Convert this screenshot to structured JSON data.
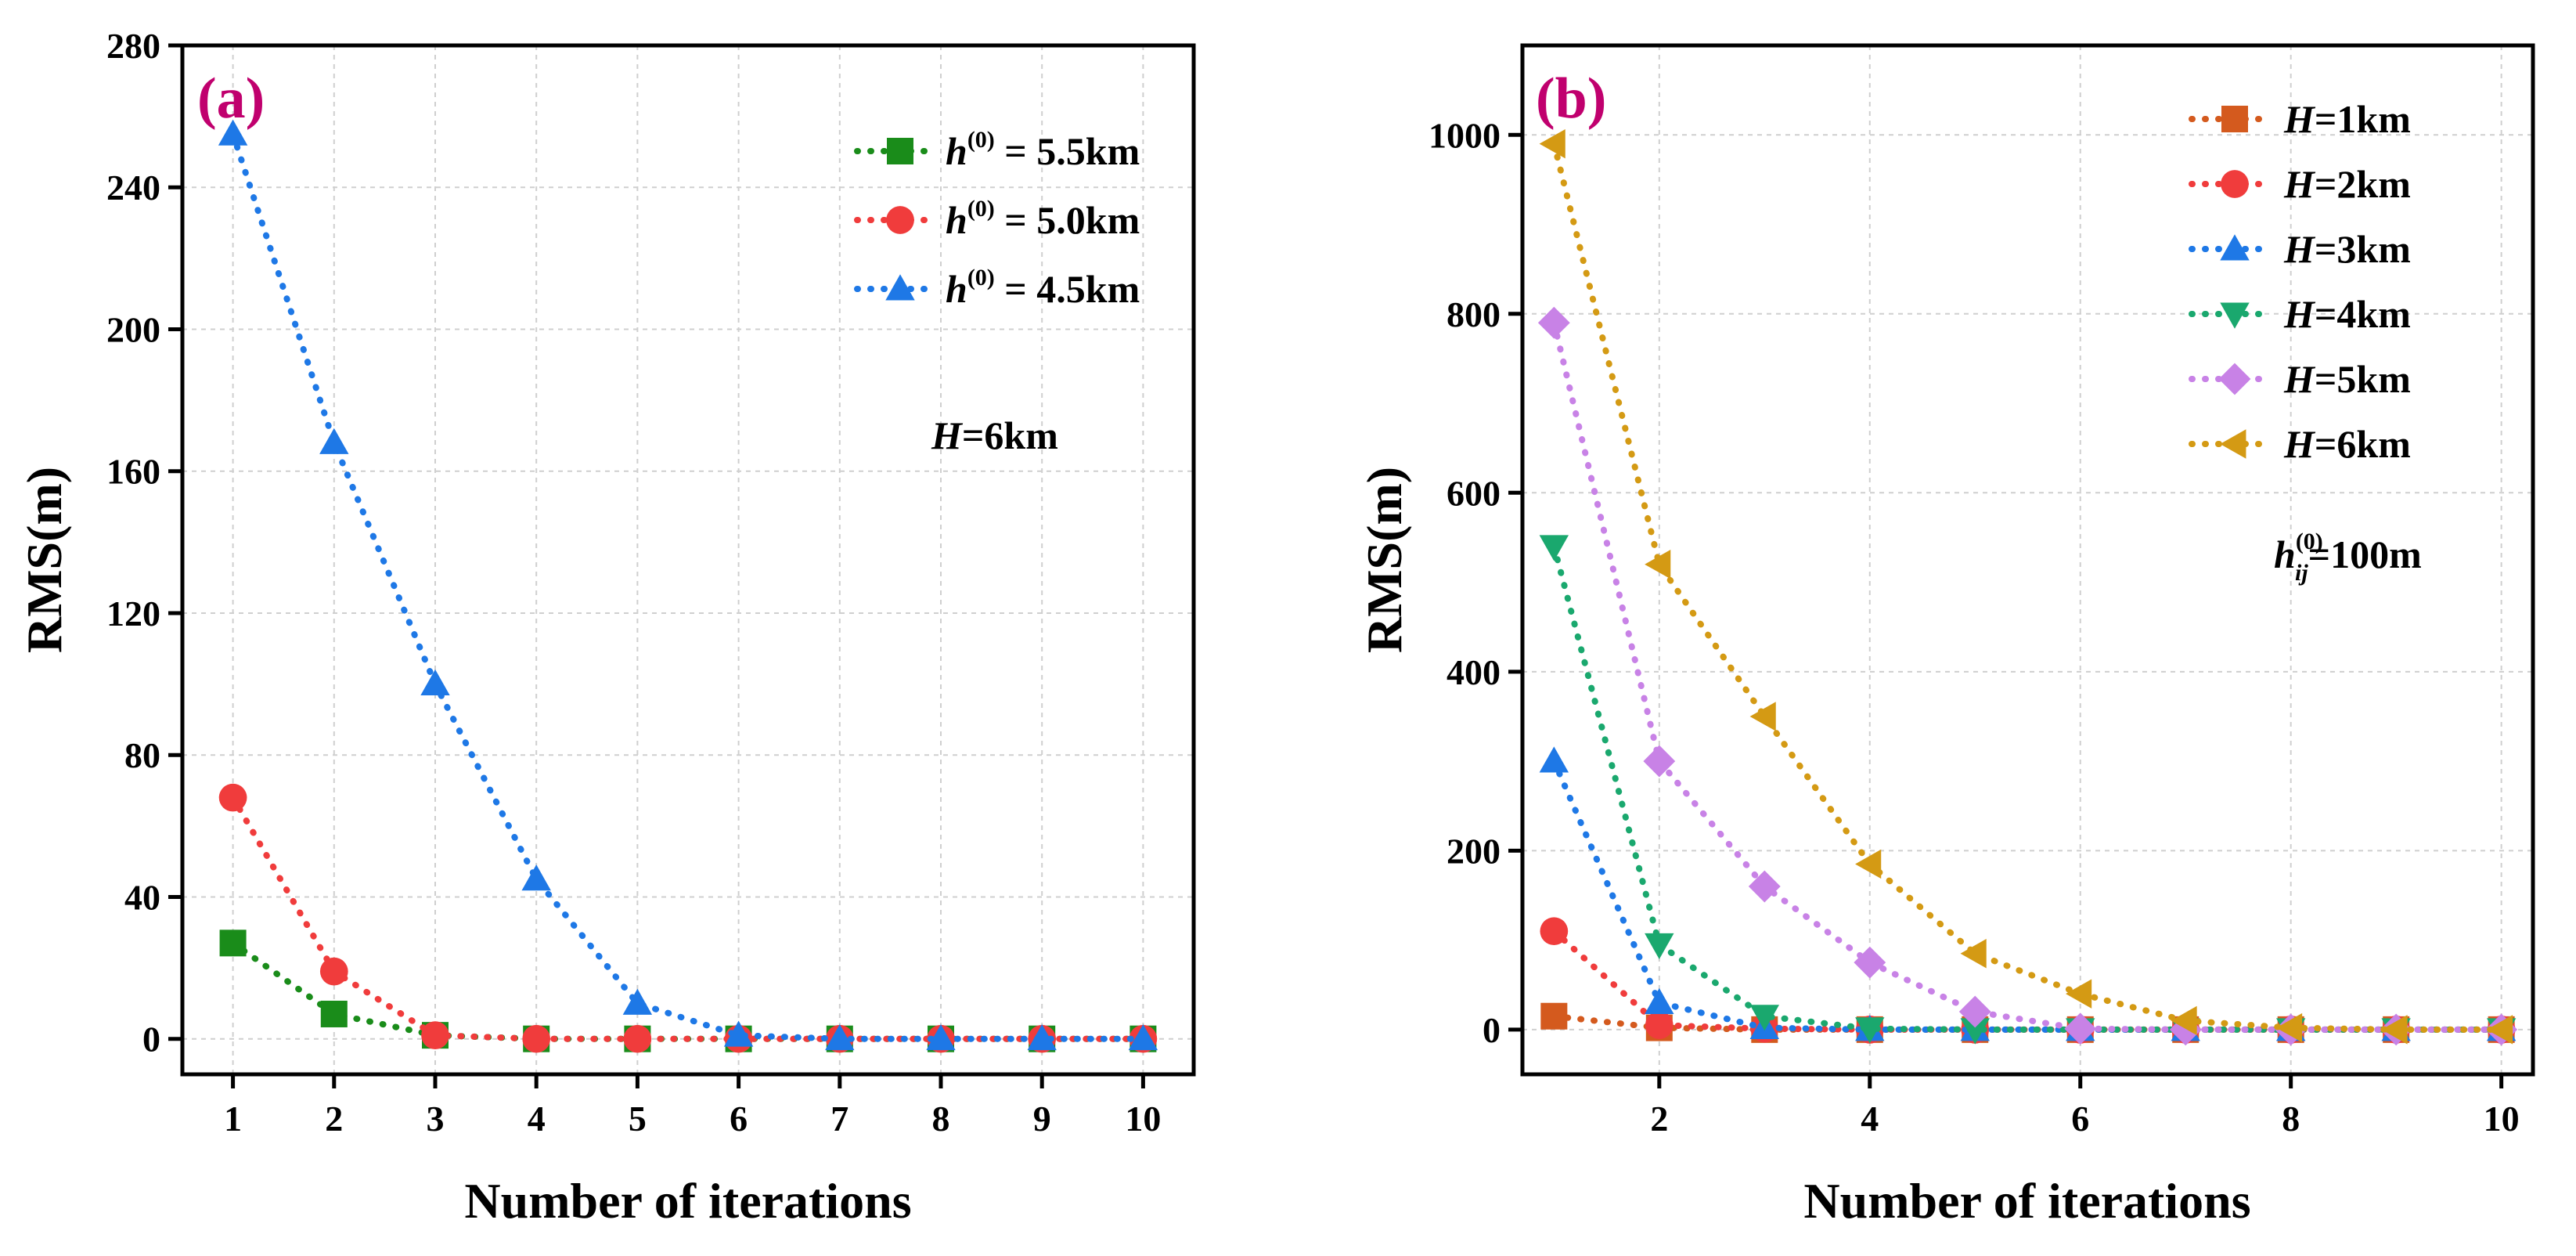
{
  "chart_data": [
    {
      "type": "scatter",
      "panel_label": "(a)",
      "xlabel": "Number of iterations",
      "ylabel": "RMS(m)",
      "xlim": [
        0.5,
        10.5
      ],
      "ylim": [
        -10,
        280
      ],
      "xticks": [
        1,
        2,
        3,
        4,
        5,
        6,
        7,
        8,
        9,
        10
      ],
      "xtick_labels": [
        "1",
        "2",
        "3",
        "4",
        "5",
        "6",
        "7",
        "8",
        "9",
        "10"
      ],
      "yticks": [
        0,
        40,
        80,
        120,
        160,
        200,
        240,
        280
      ],
      "ytick_labels": [
        "0",
        "40",
        "80",
        "120",
        "160",
        "200",
        "240",
        "280"
      ],
      "grid": true,
      "legend_position": "top-right",
      "annotation": {
        "var": "H",
        "text": "=6km"
      },
      "series": [
        {
          "name_var": "h",
          "name_sup": "(0)",
          "name_val": " = 5.5km",
          "color": "#1a8c1a",
          "marker": "square",
          "x": [
            1,
            2,
            3,
            4,
            5,
            6,
            7,
            8,
            9,
            10
          ],
          "values": [
            27,
            7,
            1,
            0,
            0,
            0,
            0,
            0,
            0,
            0
          ]
        },
        {
          "name_var": "h",
          "name_sup": "(0)",
          "name_val": " = 5.0km",
          "color": "#f03c3c",
          "marker": "circle",
          "x": [
            1,
            2,
            3,
            4,
            5,
            6,
            7,
            8,
            9,
            10
          ],
          "values": [
            68,
            19,
            1,
            0,
            0,
            0,
            0,
            0,
            0,
            0
          ]
        },
        {
          "name_var": "h",
          "name_sup": "(0)",
          "name_val": " = 4.5km",
          "color": "#1e78e6",
          "marker": "triangle-up",
          "x": [
            1,
            2,
            3,
            4,
            5,
            6,
            7,
            8,
            9,
            10
          ],
          "values": [
            255,
            168,
            100,
            45,
            10,
            1,
            0,
            0,
            0,
            0
          ]
        }
      ]
    },
    {
      "type": "scatter",
      "panel_label": "(b)",
      "xlabel": "Number of iterations",
      "ylabel": "RMS(m)",
      "xlim": [
        0.7,
        10.3
      ],
      "ylim": [
        -50,
        1100
      ],
      "xticks": [
        2,
        4,
        6,
        8,
        10
      ],
      "xtick_labels": [
        "2",
        "4",
        "6",
        "8",
        "10"
      ],
      "yticks": [
        0,
        200,
        400,
        600,
        800,
        1000
      ],
      "ytick_labels": [
        "0",
        "200",
        "400",
        "600",
        "800",
        "1000"
      ],
      "grid": true,
      "legend_position": "top-right",
      "annotation": {
        "var": "h",
        "sup": "(0)",
        "sub": "ij",
        "text": "=100m"
      },
      "series": [
        {
          "name_var": "H",
          "name_val": "=1km",
          "color": "#d45a1e",
          "marker": "square",
          "x": [
            1,
            2,
            3,
            4,
            5,
            6,
            7,
            8,
            9,
            10
          ],
          "values": [
            15,
            2,
            0,
            0,
            0,
            0,
            0,
            0,
            0,
            0
          ]
        },
        {
          "name_var": "H",
          "name_val": "=2km",
          "color": "#f03c3c",
          "marker": "circle",
          "x": [
            1,
            2,
            3,
            4,
            5,
            6,
            7,
            8,
            9,
            10
          ],
          "values": [
            110,
            5,
            1,
            0,
            0,
            0,
            0,
            0,
            0,
            0
          ]
        },
        {
          "name_var": "H",
          "name_val": "=3km",
          "color": "#1e78e6",
          "marker": "triangle-up",
          "x": [
            1,
            2,
            3,
            4,
            5,
            6,
            7,
            8,
            9,
            10
          ],
          "values": [
            300,
            30,
            2,
            0,
            0,
            0,
            0,
            0,
            0,
            0
          ]
        },
        {
          "name_var": "H",
          "name_val": "=4km",
          "color": "#1aa86e",
          "marker": "triangle-down",
          "x": [
            1,
            2,
            3,
            4,
            5,
            6,
            7,
            8,
            9,
            10
          ],
          "values": [
            540,
            95,
            15,
            1,
            0,
            0,
            0,
            0,
            0,
            0
          ]
        },
        {
          "name_var": "H",
          "name_val": "=5km",
          "color": "#c882e6",
          "marker": "diamond",
          "x": [
            1,
            2,
            3,
            4,
            5,
            6,
            7,
            8,
            9,
            10
          ],
          "values": [
            790,
            300,
            160,
            75,
            20,
            1,
            0,
            0,
            0,
            0
          ]
        },
        {
          "name_var": "H",
          "name_val": "=6km",
          "color": "#d49a14",
          "marker": "triangle-left",
          "x": [
            1,
            2,
            3,
            4,
            5,
            6,
            7,
            8,
            9,
            10
          ],
          "values": [
            990,
            520,
            350,
            185,
            85,
            40,
            10,
            2,
            0,
            0
          ]
        }
      ]
    }
  ]
}
